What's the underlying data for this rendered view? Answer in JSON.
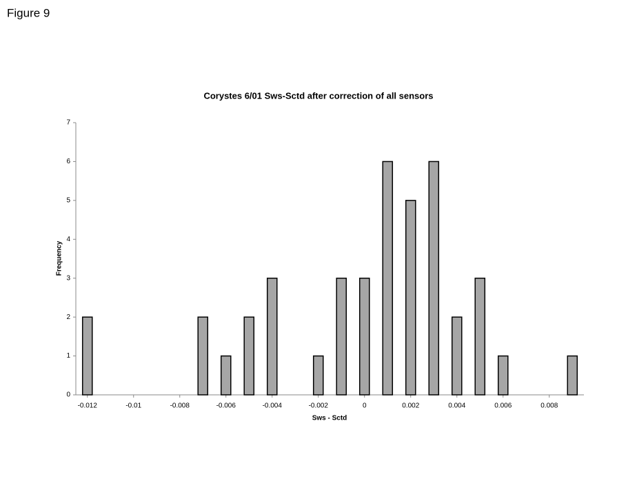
{
  "figure_label": "Figure 9",
  "chart_data": {
    "type": "bar",
    "title": "Corystes 6/01 Sws-Sctd after correction of all sensors",
    "x_label": "Sws - Sctd",
    "y_label": "Frequency",
    "x": [
      -0.012,
      -0.011,
      -0.01,
      -0.009,
      -0.008,
      -0.007,
      -0.006,
      -0.005,
      -0.004,
      -0.003,
      -0.002,
      -0.001,
      0,
      0.001,
      0.002,
      0.003,
      0.004,
      0.005,
      0.006,
      0.007,
      0.008,
      0.009
    ],
    "values": [
      2,
      0,
      0,
      0,
      0,
      2,
      1,
      2,
      3,
      0,
      1,
      3,
      3,
      6,
      5,
      6,
      2,
      3,
      1,
      0,
      0,
      1
    ],
    "color": "#a6a6a6",
    "xlim": [
      -0.0125,
      0.0095
    ],
    "xticks": [
      -0.012,
      -0.01,
      -0.008,
      -0.006,
      -0.004,
      -0.002,
      0,
      0.002,
      0.004,
      0.006,
      0.008
    ],
    "ylim": [
      0,
      7
    ],
    "yticks": [
      0,
      1,
      2,
      3,
      4,
      5,
      6,
      7
    ]
  }
}
